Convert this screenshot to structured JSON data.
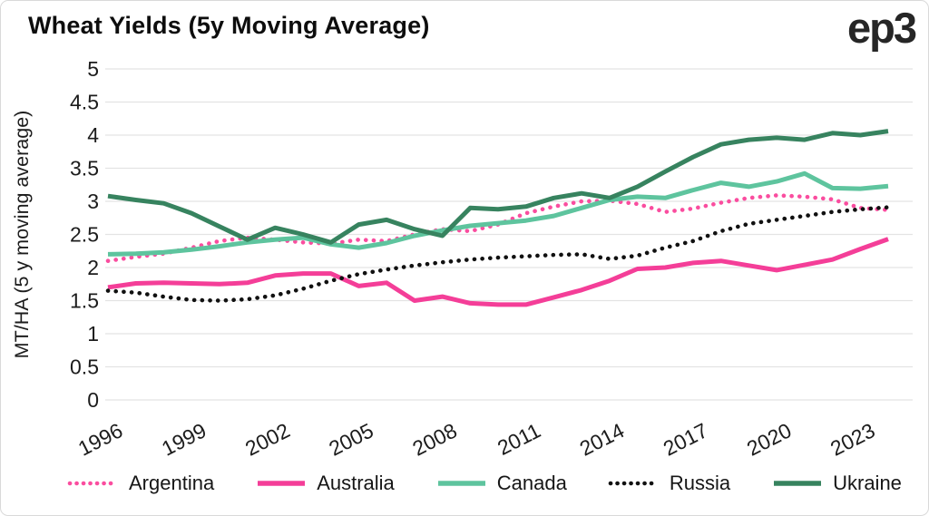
{
  "header": {
    "logo": "ep3"
  },
  "chart_data": {
    "type": "line",
    "title": "Wheat Yields (5y Moving Average)",
    "xlabel": "",
    "ylabel": "MT/HA (5 y moving average)",
    "ylim": [
      0,
      5
    ],
    "grid": true,
    "legend_position": "bottom",
    "colors": {
      "grid": "#e3e3e3",
      "tick": "#1c1c1c",
      "title": "#0d0d0d",
      "logo": "#262626",
      "background": "#ffffff"
    },
    "ytick_values": [
      0,
      0.5,
      1,
      1.5,
      2,
      2.5,
      3,
      3.5,
      4,
      4.5,
      5
    ],
    "ytick_labels": [
      "0",
      "0.5",
      "1",
      "1.5",
      "2",
      "2.5",
      "3",
      "3.5",
      "4",
      "4.5",
      "5"
    ],
    "xtick_labels": [
      "1996",
      "1999",
      "2002",
      "2005",
      "2008",
      "2011",
      "2014",
      "2017",
      "2020",
      "2023"
    ],
    "x_years": [
      1996,
      1997,
      1998,
      1999,
      2000,
      2001,
      2002,
      2003,
      2004,
      2005,
      2006,
      2007,
      2008,
      2009,
      2010,
      2011,
      2012,
      2013,
      2014,
      2015,
      2016,
      2017,
      2018,
      2019,
      2020,
      2021,
      2022,
      2023,
      2024
    ],
    "series": [
      {
        "name": "Argentina",
        "style": "dotted",
        "color": "#FA4D9F",
        "values": [
          2.1,
          2.16,
          2.21,
          2.3,
          2.4,
          2.45,
          2.42,
          2.38,
          2.36,
          2.42,
          2.4,
          2.5,
          2.58,
          2.55,
          2.65,
          2.82,
          2.92,
          3.0,
          3.01,
          2.96,
          2.84,
          2.89,
          2.98,
          3.05,
          3.09,
          3.07,
          3.03,
          2.9,
          2.87
        ]
      },
      {
        "name": "Australia",
        "style": "solid",
        "color": "#F43E98",
        "values": [
          1.7,
          1.76,
          1.77,
          1.76,
          1.75,
          1.77,
          1.88,
          1.91,
          1.91,
          1.72,
          1.77,
          1.5,
          1.56,
          1.46,
          1.44,
          1.44,
          1.55,
          1.66,
          1.8,
          1.98,
          2.0,
          2.07,
          2.1,
          2.03,
          1.96,
          2.04,
          2.12,
          2.28,
          2.43
        ]
      },
      {
        "name": "Canada",
        "style": "solid",
        "color": "#5EC49E",
        "values": [
          2.2,
          2.21,
          2.23,
          2.27,
          2.32,
          2.38,
          2.42,
          2.45,
          2.35,
          2.3,
          2.37,
          2.48,
          2.56,
          2.63,
          2.67,
          2.71,
          2.78,
          2.9,
          3.02,
          3.07,
          3.05,
          3.17,
          3.28,
          3.22,
          3.3,
          3.42,
          3.2,
          3.19,
          3.23
        ]
      },
      {
        "name": "Russia",
        "style": "dotted",
        "color": "#111111",
        "values": [
          1.65,
          1.62,
          1.56,
          1.51,
          1.5,
          1.52,
          1.58,
          1.68,
          1.8,
          1.9,
          1.97,
          2.03,
          2.08,
          2.12,
          2.15,
          2.17,
          2.19,
          2.2,
          2.13,
          2.18,
          2.3,
          2.4,
          2.55,
          2.66,
          2.72,
          2.78,
          2.84,
          2.88,
          2.91
        ]
      },
      {
        "name": "Ukraine",
        "style": "solid",
        "color": "#37835F",
        "values": [
          3.08,
          3.02,
          2.97,
          2.82,
          2.62,
          2.42,
          2.6,
          2.5,
          2.38,
          2.65,
          2.72,
          2.58,
          2.48,
          2.9,
          2.88,
          2.92,
          3.05,
          3.12,
          3.05,
          3.22,
          3.45,
          3.67,
          3.86,
          3.93,
          3.96,
          3.93,
          4.03,
          4.0,
          4.06
        ]
      }
    ]
  }
}
